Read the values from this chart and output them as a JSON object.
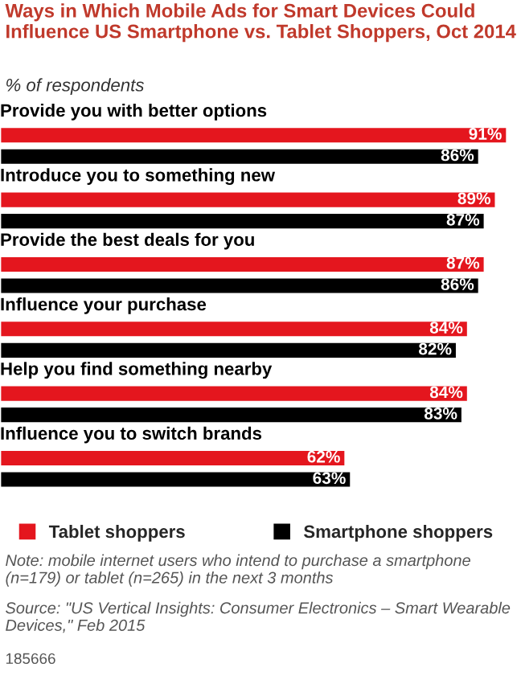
{
  "chart_data": {
    "type": "bar",
    "orientation": "horizontal",
    "title": "Ways in Which Mobile Ads for Smart Devices Could Influence US Smartphone vs. Tablet Shoppers, Oct 2014",
    "subtitle": "% of respondents",
    "categories": [
      "Provide you with better options",
      "Introduce you to something new",
      "Provide the best deals for you",
      "Influence your purchase",
      "Help you find something nearby",
      "Influence you to switch brands"
    ],
    "series": [
      {
        "name": "Tablet shoppers",
        "color": "#e4161e",
        "values": [
          91,
          89,
          87,
          84,
          84,
          62
        ],
        "value_labels": [
          "91%",
          "89%",
          "87%",
          "84%",
          "84%",
          "62%"
        ]
      },
      {
        "name": "Smartphone shoppers",
        "color": "#000000",
        "values": [
          86,
          87,
          86,
          82,
          83,
          63
        ],
        "value_labels": [
          "86%",
          "87%",
          "86%",
          "82%",
          "83%",
          "63%"
        ]
      }
    ],
    "legend": "bottom",
    "annotations": [
      "Note: mobile internet users who intend to purchase a smartphone (n=179) or tablet (n=265) in the next 3 months",
      "Source: \"US Vertical Insights: Consumer Electronics – Smart Wearable Devices,\" Feb 2015",
      "185666"
    ]
  }
}
